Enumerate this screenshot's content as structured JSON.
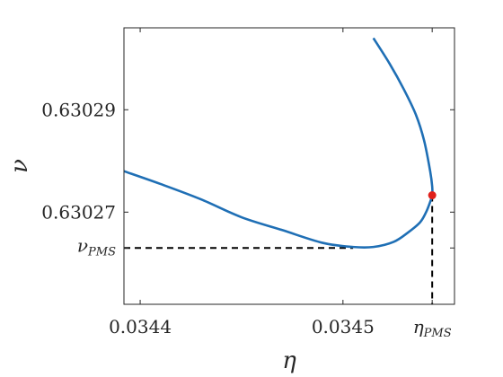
{
  "chart_data": {
    "type": "line",
    "xlabel": "η",
    "ylabel": "ν",
    "xlim": [
      0.034392,
      0.034555
    ],
    "ylim": [
      0.630252,
      0.630306
    ],
    "x_ticks": [
      {
        "value": 0.0344,
        "label": "0.0344"
      },
      {
        "value": 0.0345,
        "label": "0.0345"
      }
    ],
    "y_ticks": [
      {
        "value": 0.63027,
        "label": "0.63027"
      },
      {
        "value": 0.63029,
        "label": "0.63029"
      }
    ],
    "special_x": {
      "value": 0.034544,
      "base": "η",
      "sub": "PMS"
    },
    "special_y": {
      "value": 0.630263,
      "base": "ν",
      "sub": "PMS"
    },
    "grid": false,
    "colors": {
      "curve": "#1f6fb5",
      "point": "#e0201b",
      "axes": "#262626",
      "dashed": "#000000"
    },
    "series": [
      {
        "x": [
          0.034392,
          0.03441,
          0.03443,
          0.03445,
          0.03447,
          0.03449,
          0.034505,
          0.034515,
          0.034525,
          0.034532,
          0.034538,
          0.034541,
          0.034543,
          0.034544,
          0.034544,
          0.034543,
          0.03454,
          0.034536,
          0.03453,
          0.034523,
          0.034515
        ],
        "y": [
          0.630278,
          0.6302755,
          0.6302725,
          0.630269,
          0.6302665,
          0.630264,
          0.6302632,
          0.6302632,
          0.6302642,
          0.630266,
          0.630268,
          0.63027,
          0.630272,
          0.6302733,
          0.630275,
          0.630278,
          0.630284,
          0.630289,
          0.630294,
          0.630299,
          0.630304
        ]
      }
    ],
    "highlight_point": {
      "x": 0.034544,
      "y": 0.6302733
    }
  }
}
